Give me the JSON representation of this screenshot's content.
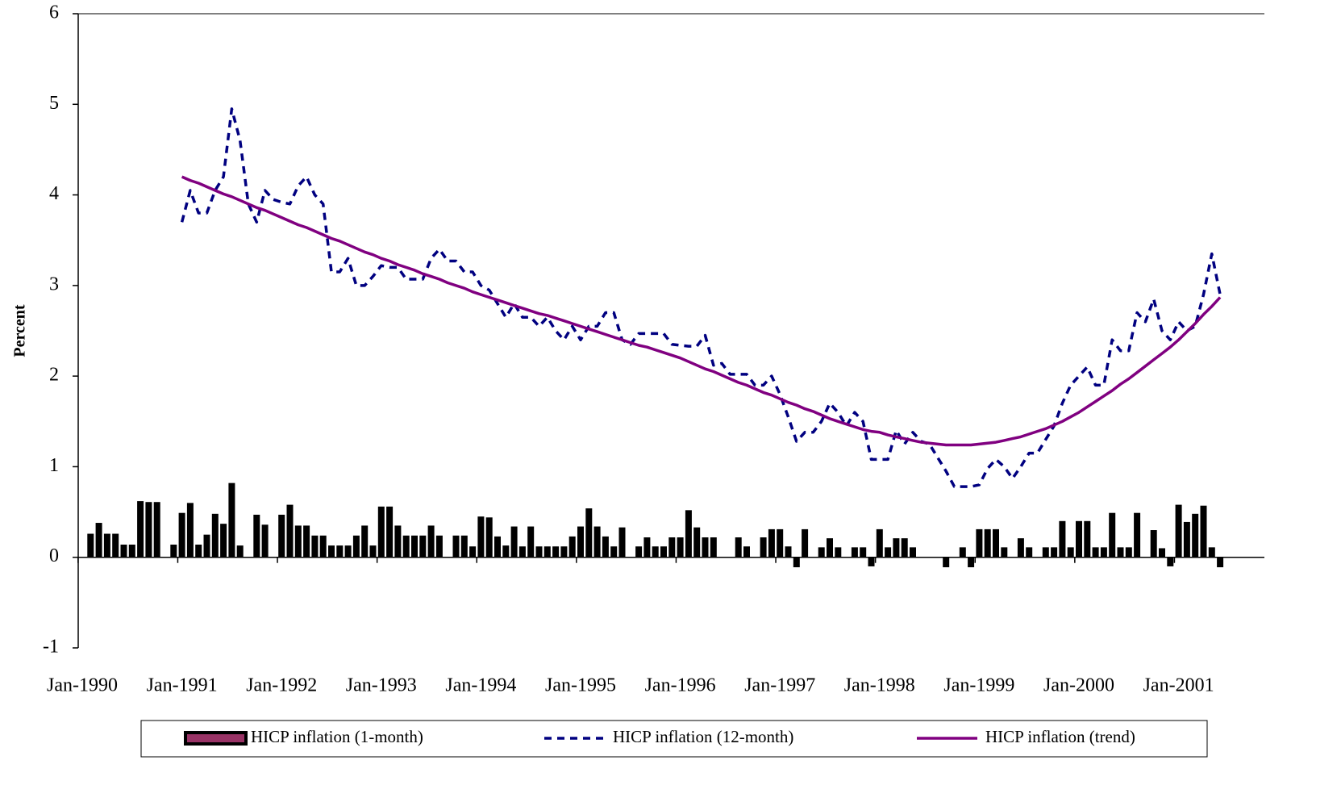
{
  "chart_data": {
    "type": "combo",
    "y_label": "Percent",
    "categories": [
      "Jan-1990",
      null,
      null,
      null,
      null,
      null,
      null,
      null,
      null,
      null,
      null,
      null,
      "Jan-1991",
      null,
      null,
      null,
      null,
      null,
      null,
      null,
      null,
      null,
      null,
      null,
      "Jan-1992",
      null,
      null,
      null,
      null,
      null,
      null,
      null,
      null,
      null,
      null,
      null,
      "Jan-1993",
      null,
      null,
      null,
      null,
      null,
      null,
      null,
      null,
      null,
      null,
      null,
      "Jan-1994",
      null,
      null,
      null,
      null,
      null,
      null,
      null,
      null,
      null,
      null,
      null,
      "Jan-1995",
      null,
      null,
      null,
      null,
      null,
      null,
      null,
      null,
      null,
      null,
      null,
      "Jan-1996",
      null,
      null,
      null,
      null,
      null,
      null,
      null,
      null,
      null,
      null,
      null,
      "Jan-1997",
      null,
      null,
      null,
      null,
      null,
      null,
      null,
      null,
      null,
      null,
      null,
      "Jan-1998",
      null,
      null,
      null,
      null,
      null,
      null,
      null,
      null,
      null,
      null,
      null,
      "Jan-1999",
      null,
      null,
      null,
      null,
      null,
      null,
      null,
      null,
      null,
      null,
      null,
      "Jan-2000",
      null,
      null,
      null,
      null,
      null,
      null,
      null,
      null,
      null,
      null,
      null,
      "Jan-2001",
      null,
      null,
      null,
      null,
      null
    ],
    "series": [
      {
        "name": "HICP inflation (1-month)",
        "type": "bar",
        "color": "#000000",
        "legend_color": "#993366",
        "values": [
          null,
          0.26,
          0.38,
          0.26,
          0.26,
          0.14,
          0.14,
          0.62,
          0.61,
          0.61,
          0,
          0.14,
          0.49,
          0.6,
          0.14,
          0.25,
          0.48,
          0.37,
          0.82,
          0.13,
          0,
          0.47,
          0.36,
          0,
          0.47,
          0.58,
          0.35,
          0.35,
          0.24,
          0.24,
          0.13,
          0.13,
          0.13,
          0.24,
          0.35,
          0.13,
          0.56,
          0.56,
          0.35,
          0.24,
          0.24,
          0.24,
          0.35,
          0.24,
          0,
          0.24,
          0.24,
          0.12,
          0.45,
          0.44,
          0.23,
          0.13,
          0.34,
          0.12,
          0.34,
          0.12,
          0.12,
          0.12,
          0.12,
          0.23,
          0.34,
          0.54,
          0.34,
          0.23,
          0.12,
          0.33,
          0,
          0.12,
          0.22,
          0.12,
          0.12,
          0.22,
          0.22,
          0.52,
          0.33,
          0.22,
          0.22,
          0,
          0,
          0.22,
          0.12,
          0,
          0.22,
          0.31,
          0.31,
          0.12,
          -0.11,
          0.31,
          0,
          0.11,
          0.21,
          0.11,
          0,
          0.11,
          0.11,
          -0.1,
          0.31,
          0.11,
          0.21,
          0.21,
          0.11,
          0,
          0,
          0,
          -0.11,
          0,
          0.11,
          -0.11,
          0.31,
          0.31,
          0.31,
          0.11,
          0,
          0.21,
          0.11,
          0,
          0.11,
          0.11,
          0.4,
          0.11,
          0.4,
          0.4,
          0.11,
          0.11,
          0.49,
          0.11,
          0.11,
          0.49,
          0,
          0.3,
          0.1,
          -0.1,
          0.58,
          0.39,
          0.48,
          0.57,
          0.11,
          -0.11
        ]
      },
      {
        "name": "HICP inflation (12-month)",
        "type": "line",
        "style": "dashed",
        "color": "#000080",
        "values": [
          null,
          null,
          null,
          null,
          null,
          null,
          null,
          null,
          null,
          null,
          null,
          null,
          3.7,
          4.05,
          3.8,
          3.8,
          4.05,
          4.2,
          4.95,
          4.6,
          3.9,
          3.7,
          4.05,
          3.95,
          3.92,
          3.9,
          4.1,
          4.2,
          4.0,
          3.9,
          3.15,
          3.15,
          3.3,
          3.0,
          3.0,
          3.1,
          3.22,
          3.2,
          3.2,
          3.07,
          3.07,
          3.07,
          3.3,
          3.4,
          3.27,
          3.27,
          3.15,
          3.15,
          3.0,
          2.95,
          2.8,
          2.65,
          2.8,
          2.65,
          2.65,
          2.55,
          2.65,
          2.5,
          2.4,
          2.55,
          2.4,
          2.55,
          2.55,
          2.7,
          2.7,
          2.4,
          2.35,
          2.47,
          2.47,
          2.47,
          2.47,
          2.35,
          2.34,
          2.33,
          2.33,
          2.45,
          2.12,
          2.14,
          2.02,
          2.02,
          2.02,
          1.9,
          1.9,
          2.0,
          1.8,
          1.55,
          1.28,
          1.38,
          1.38,
          1.5,
          1.7,
          1.6,
          1.45,
          1.6,
          1.5,
          1.08,
          1.08,
          1.08,
          1.4,
          1.25,
          1.38,
          1.28,
          1.25,
          1.1,
          0.95,
          0.78,
          0.78,
          0.78,
          0.8,
          0.98,
          1.08,
          1.0,
          0.87,
          1.0,
          1.15,
          1.15,
          1.3,
          1.45,
          1.7,
          1.9,
          2.0,
          2.1,
          1.9,
          1.9,
          2.4,
          2.28,
          2.28,
          2.7,
          2.6,
          2.85,
          2.5,
          2.4,
          2.6,
          2.5,
          2.55,
          2.9,
          3.35,
          2.9
        ]
      },
      {
        "name": "HICP inflation (trend)",
        "type": "line",
        "style": "solid",
        "color": "#800080",
        "values": [
          null,
          null,
          null,
          null,
          null,
          null,
          null,
          null,
          null,
          null,
          null,
          null,
          4.2,
          4.16,
          4.13,
          4.09,
          4.05,
          4.01,
          3.98,
          3.94,
          3.9,
          3.86,
          3.83,
          3.79,
          3.75,
          3.71,
          3.67,
          3.64,
          3.6,
          3.56,
          3.52,
          3.49,
          3.45,
          3.41,
          3.37,
          3.34,
          3.3,
          3.27,
          3.23,
          3.2,
          3.17,
          3.13,
          3.1,
          3.07,
          3.03,
          3.0,
          2.97,
          2.93,
          2.9,
          2.87,
          2.84,
          2.81,
          2.78,
          2.75,
          2.72,
          2.69,
          2.67,
          2.64,
          2.61,
          2.58,
          2.55,
          2.52,
          2.49,
          2.46,
          2.43,
          2.4,
          2.37,
          2.34,
          2.32,
          2.29,
          2.26,
          2.23,
          2.2,
          2.16,
          2.12,
          2.08,
          2.05,
          2.01,
          1.97,
          1.93,
          1.9,
          1.86,
          1.82,
          1.79,
          1.75,
          1.71,
          1.68,
          1.64,
          1.61,
          1.57,
          1.53,
          1.5,
          1.47,
          1.44,
          1.41,
          1.39,
          1.38,
          1.35,
          1.33,
          1.31,
          1.29,
          1.27,
          1.26,
          1.25,
          1.24,
          1.24,
          1.24,
          1.24,
          1.25,
          1.26,
          1.27,
          1.29,
          1.31,
          1.33,
          1.36,
          1.39,
          1.42,
          1.46,
          1.5,
          1.55,
          1.6,
          1.66,
          1.72,
          1.78,
          1.84,
          1.91,
          1.97,
          2.04,
          2.11,
          2.18,
          2.25,
          2.32,
          2.4,
          2.49,
          2.58,
          2.68,
          2.77,
          2.87
        ]
      }
    ],
    "ylim": [
      -1,
      6
    ],
    "yticks": [
      -1,
      0,
      1,
      2,
      3,
      4,
      5,
      6
    ],
    "grid": false,
    "legend": "bottom"
  }
}
